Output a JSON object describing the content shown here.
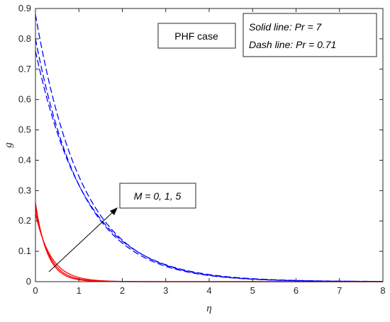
{
  "chart_data": {
    "type": "line",
    "xlabel": "η",
    "ylabel": "g",
    "xlim": [
      0,
      8
    ],
    "ylim": [
      0,
      0.9
    ],
    "x_ticks": [
      "0",
      "1",
      "2",
      "3",
      "4",
      "5",
      "6",
      "7",
      "8"
    ],
    "y_ticks": [
      "0",
      "0.1",
      "0.2",
      "0.3",
      "0.4",
      "0.5",
      "0.6",
      "0.7",
      "0.8",
      "0.9"
    ],
    "grid": false,
    "colors": {
      "solid": "#ff0000",
      "dash": "#0000ff"
    },
    "annotations": {
      "case_label": "PHF case",
      "legend_line1": "Solid line: Pr = 7",
      "legend_line2": "Dash line: Pr = 0.71",
      "arrow_label": "M = 0, 1, 5"
    },
    "series": [
      {
        "style": "solid",
        "color": "#ff0000",
        "g0": 0.26,
        "decay": 3.7,
        "points": [
          [
            0,
            0.26
          ],
          [
            0.5,
            0.041
          ],
          [
            1,
            0.0064
          ],
          [
            2,
            0.0002
          ],
          [
            8,
            0
          ]
        ]
      },
      {
        "style": "solid",
        "color": "#ff0000",
        "g0": 0.245,
        "decay": 3.3,
        "points": [
          [
            0,
            0.245
          ],
          [
            0.5,
            0.047
          ],
          [
            1,
            0.009
          ],
          [
            2,
            0.0003
          ],
          [
            8,
            0
          ]
        ]
      },
      {
        "style": "solid",
        "color": "#ff0000",
        "g0": 0.225,
        "decay": 2.8,
        "points": [
          [
            0,
            0.225
          ],
          [
            0.5,
            0.055
          ],
          [
            1,
            0.0137
          ],
          [
            2,
            0.0008
          ],
          [
            8,
            0
          ]
        ]
      },
      {
        "style": "dash",
        "color": "#0000ff",
        "g0": 0.88,
        "decay": 0.93,
        "points": [
          [
            0,
            0.88
          ],
          [
            1,
            0.35
          ],
          [
            2,
            0.137
          ],
          [
            3,
            0.054
          ],
          [
            4,
            0.021
          ],
          [
            5,
            0.0084
          ],
          [
            6,
            0.0033
          ],
          [
            8,
            0
          ]
        ]
      },
      {
        "style": "dash",
        "color": "#0000ff",
        "g0": 0.8,
        "decay": 0.92,
        "points": [
          [
            0,
            0.8
          ],
          [
            1,
            0.319
          ],
          [
            2,
            0.127
          ],
          [
            3,
            0.051
          ],
          [
            4,
            0.02
          ],
          [
            5,
            0.008
          ],
          [
            6,
            0.0032
          ],
          [
            8,
            0
          ]
        ]
      },
      {
        "style": "dash",
        "color": "#0000ff",
        "g0": 0.76,
        "decay": 0.87,
        "points": [
          [
            0,
            0.76
          ],
          [
            1,
            0.318
          ],
          [
            2,
            0.133
          ],
          [
            3,
            0.056
          ],
          [
            4,
            0.023
          ],
          [
            5,
            0.0098
          ],
          [
            6,
            0.0041
          ],
          [
            8,
            0
          ]
        ]
      }
    ]
  }
}
